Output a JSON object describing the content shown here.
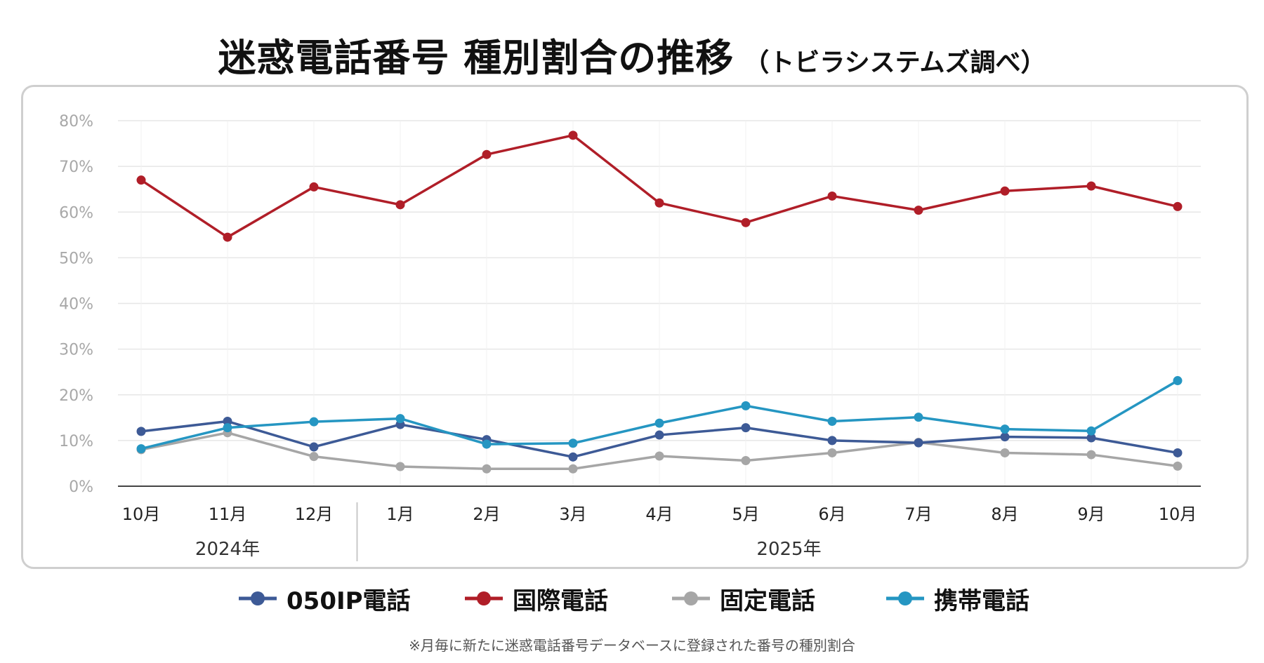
{
  "title": {
    "main": "迷惑電話番号 種別割合の推移",
    "sub": "（トビラシステムズ調べ）"
  },
  "footnote": "※月毎に新たに迷惑電話番号データベースに登録された番号の種別割合",
  "chart_data": {
    "type": "line",
    "title": "迷惑電話番号 種別割合の推移",
    "categories": [
      "10月",
      "11月",
      "12月",
      "1月",
      "2月",
      "3月",
      "4月",
      "5月",
      "6月",
      "7月",
      "8月",
      "9月",
      "10月"
    ],
    "year_groups": [
      {
        "label": "2024年",
        "start": 0,
        "end": 2
      },
      {
        "label": "2025年",
        "start": 3,
        "end": 12
      }
    ],
    "y_ticks": [
      "0%",
      "10%",
      "20%",
      "30%",
      "40%",
      "50%",
      "60%",
      "70%",
      "80%"
    ],
    "ylim": [
      0,
      80
    ],
    "grid": true,
    "legend_position": "bottom",
    "series": [
      {
        "name": "050IP電話",
        "color": "#3d5a96",
        "values": [
          12.0,
          14.2,
          8.6,
          13.5,
          10.2,
          6.4,
          11.2,
          12.8,
          10.0,
          9.5,
          10.8,
          10.6,
          7.3
        ]
      },
      {
        "name": "国際電話",
        "color": "#b01e28",
        "values": [
          67.0,
          54.5,
          65.5,
          61.6,
          72.6,
          76.8,
          62.0,
          57.7,
          63.5,
          60.4,
          64.6,
          65.7,
          61.2
        ]
      },
      {
        "name": "固定電話",
        "color": "#a6a6a6",
        "values": [
          8.0,
          11.7,
          6.5,
          4.3,
          3.8,
          3.8,
          6.6,
          5.6,
          7.3,
          9.6,
          7.3,
          6.9,
          4.4
        ]
      },
      {
        "name": "携帯電話",
        "color": "#2596c2",
        "values": [
          8.2,
          12.8,
          14.1,
          14.8,
          9.2,
          9.4,
          13.8,
          17.6,
          14.2,
          15.1,
          12.5,
          12.1,
          23.1
        ]
      }
    ]
  }
}
